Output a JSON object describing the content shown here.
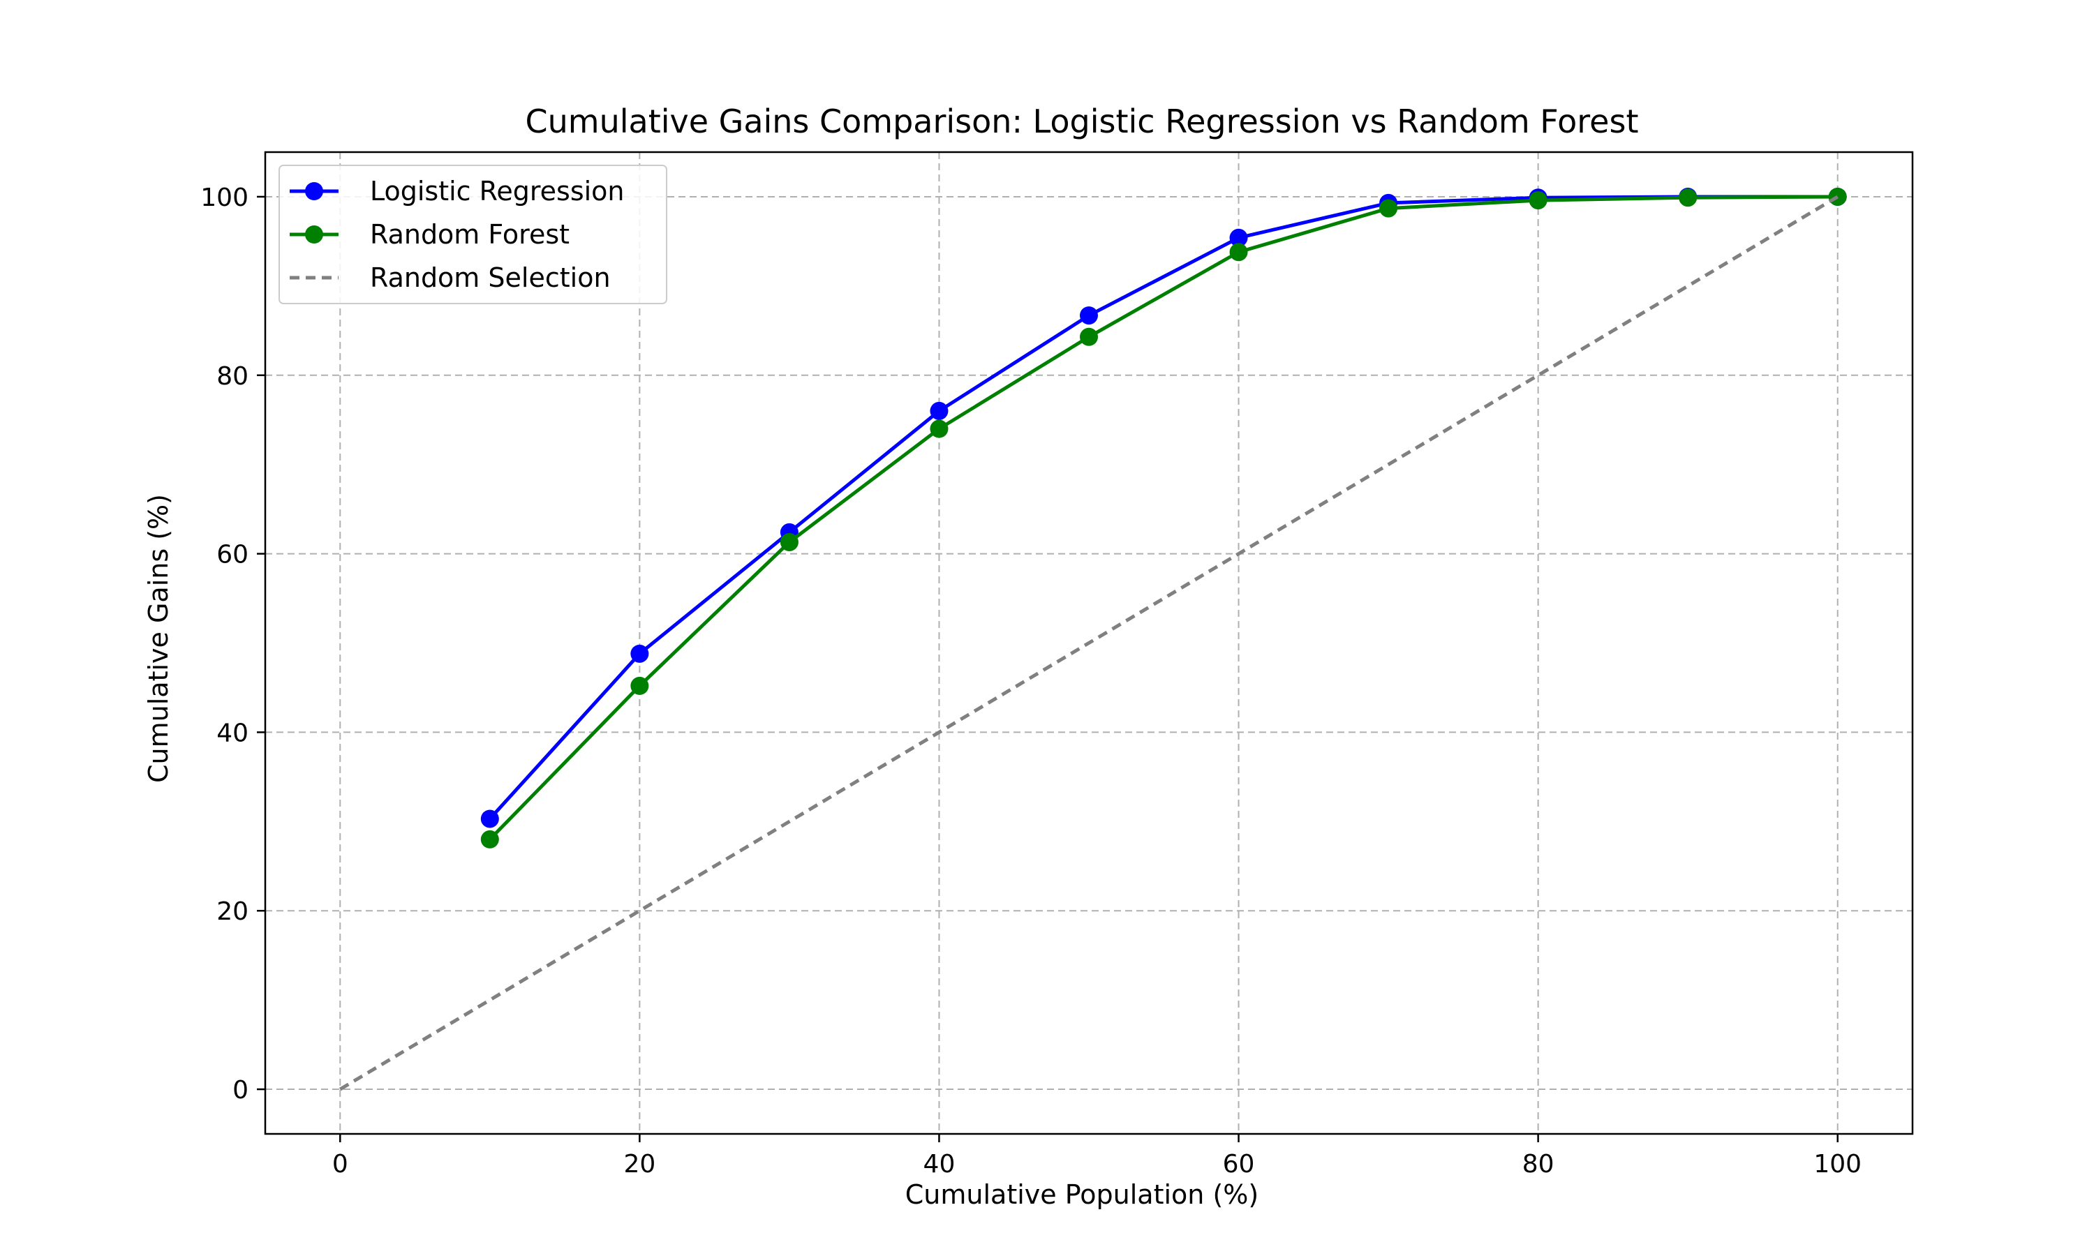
{
  "chart_data": {
    "type": "line",
    "title": "Cumulative Gains Comparison: Logistic Regression vs Random Forest",
    "xlabel": "Cumulative Population (%)",
    "ylabel": "Cumulative Gains (%)",
    "xlim": [
      -5,
      105
    ],
    "ylim": [
      -5,
      105
    ],
    "xticks": [
      0,
      20,
      40,
      60,
      80,
      100
    ],
    "yticks": [
      0,
      20,
      40,
      60,
      80,
      100
    ],
    "grid": true,
    "legend_position": "upper-left",
    "series": [
      {
        "name": "Logistic Regression",
        "color": "#0000ff",
        "style": "solid",
        "markers": true,
        "x": [
          10,
          20,
          30,
          40,
          50,
          60,
          70,
          80,
          90,
          100
        ],
        "y": [
          30.3,
          48.8,
          62.4,
          76.0,
          86.7,
          95.4,
          99.3,
          99.9,
          100.0,
          100.0
        ]
      },
      {
        "name": "Random Forest",
        "color": "#008000",
        "style": "solid",
        "markers": true,
        "x": [
          10,
          20,
          30,
          40,
          50,
          60,
          70,
          80,
          90,
          100
        ],
        "y": [
          28.0,
          45.2,
          61.3,
          74.0,
          84.3,
          93.8,
          98.7,
          99.6,
          99.9,
          100.0
        ]
      },
      {
        "name": "Random Selection",
        "color": "#808080",
        "style": "dashed",
        "markers": false,
        "x": [
          0,
          100
        ],
        "y": [
          0,
          100
        ]
      }
    ]
  }
}
